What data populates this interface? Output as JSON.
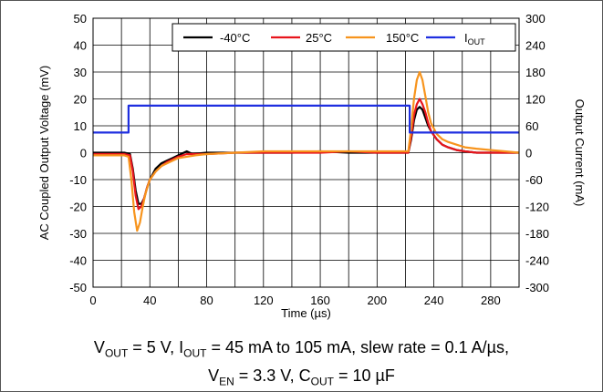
{
  "chart_data": {
    "type": "line",
    "xlabel": "Time (µs)",
    "ylabel_left": "AC Coupled Output Voltage (mV)",
    "ylabel_right": "Output Current (mA)",
    "xlim": [
      0,
      300
    ],
    "ylim_left": [
      -50,
      50
    ],
    "ylim_right": [
      -300,
      300
    ],
    "x_ticks": [
      0,
      40,
      80,
      120,
      160,
      200,
      240,
      280
    ],
    "y_left_ticks": [
      50,
      40,
      30,
      20,
      10,
      0,
      -10,
      -20,
      -30,
      -40,
      -50
    ],
    "y_right_ticks": [
      300,
      240,
      180,
      120,
      60,
      0,
      -60,
      -120,
      -180,
      -240,
      -300
    ],
    "grid": true,
    "legend_position": "top-right",
    "series": [
      {
        "name": "-40°C",
        "axis": "left",
        "color": "#000000",
        "points": [
          [
            0,
            0
          ],
          [
            22,
            0
          ],
          [
            26,
            -0.5
          ],
          [
            28,
            -6
          ],
          [
            30,
            -14
          ],
          [
            32,
            -19
          ],
          [
            34,
            -19
          ],
          [
            36,
            -17
          ],
          [
            38,
            -13
          ],
          [
            40,
            -10
          ],
          [
            44,
            -6
          ],
          [
            48,
            -4
          ],
          [
            52,
            -3
          ],
          [
            56,
            -2
          ],
          [
            60,
            -1
          ],
          [
            66,
            0.5
          ],
          [
            70,
            -0.5
          ],
          [
            80,
            0
          ],
          [
            100,
            0
          ],
          [
            120,
            0
          ],
          [
            140,
            0
          ],
          [
            160,
            0.5
          ],
          [
            180,
            0
          ],
          [
            200,
            0
          ],
          [
            222,
            0
          ],
          [
            224,
            5
          ],
          [
            226,
            12
          ],
          [
            228,
            16
          ],
          [
            230,
            17
          ],
          [
            232,
            16
          ],
          [
            234,
            13
          ],
          [
            236,
            10
          ],
          [
            238,
            8
          ],
          [
            242,
            5
          ],
          [
            246,
            3
          ],
          [
            250,
            2
          ],
          [
            256,
            1
          ],
          [
            262,
            0.5
          ],
          [
            270,
            0
          ],
          [
            280,
            0
          ],
          [
            290,
            0
          ],
          [
            300,
            0
          ]
        ]
      },
      {
        "name": "25°C",
        "axis": "left",
        "color": "#e8141c",
        "points": [
          [
            0,
            -0.5
          ],
          [
            22,
            -0.5
          ],
          [
            26,
            -1
          ],
          [
            28,
            -7
          ],
          [
            30,
            -16
          ],
          [
            32,
            -21
          ],
          [
            34,
            -20
          ],
          [
            36,
            -17
          ],
          [
            38,
            -13
          ],
          [
            40,
            -10
          ],
          [
            44,
            -7
          ],
          [
            48,
            -5
          ],
          [
            52,
            -3.5
          ],
          [
            56,
            -2.5
          ],
          [
            60,
            -1.5
          ],
          [
            66,
            -0.5
          ],
          [
            72,
            -0.5
          ],
          [
            80,
            -0.5
          ],
          [
            100,
            0
          ],
          [
            120,
            0
          ],
          [
            140,
            0
          ],
          [
            160,
            0
          ],
          [
            180,
            0.5
          ],
          [
            200,
            0
          ],
          [
            222,
            0
          ],
          [
            224,
            6
          ],
          [
            226,
            14
          ],
          [
            228,
            18
          ],
          [
            230,
            20
          ],
          [
            232,
            18
          ],
          [
            234,
            15
          ],
          [
            236,
            11
          ],
          [
            238,
            8
          ],
          [
            242,
            5
          ],
          [
            246,
            3
          ],
          [
            250,
            2
          ],
          [
            256,
            1
          ],
          [
            262,
            0.5
          ],
          [
            270,
            0
          ],
          [
            280,
            0
          ],
          [
            290,
            0
          ],
          [
            300,
            0
          ]
        ]
      },
      {
        "name": "150°C",
        "axis": "left",
        "color": "#f7941d",
        "points": [
          [
            0,
            -1
          ],
          [
            22,
            -1
          ],
          [
            25,
            -1.5
          ],
          [
            27,
            -10
          ],
          [
            29,
            -22
          ],
          [
            31,
            -29
          ],
          [
            33,
            -26
          ],
          [
            35,
            -20
          ],
          [
            37,
            -15
          ],
          [
            40,
            -10
          ],
          [
            44,
            -7
          ],
          [
            48,
            -5
          ],
          [
            52,
            -4
          ],
          [
            56,
            -3
          ],
          [
            60,
            -2
          ],
          [
            66,
            -1.5
          ],
          [
            72,
            -1
          ],
          [
            80,
            -0.5
          ],
          [
            100,
            0
          ],
          [
            120,
            0.5
          ],
          [
            140,
            0.5
          ],
          [
            160,
            0.5
          ],
          [
            180,
            0.5
          ],
          [
            200,
            0.5
          ],
          [
            222,
            0.5
          ],
          [
            224,
            9
          ],
          [
            226,
            20
          ],
          [
            228,
            27
          ],
          [
            230,
            30
          ],
          [
            232,
            27
          ],
          [
            234,
            21
          ],
          [
            236,
            15
          ],
          [
            238,
            11
          ],
          [
            242,
            7
          ],
          [
            246,
            5
          ],
          [
            250,
            4
          ],
          [
            256,
            3
          ],
          [
            262,
            2
          ],
          [
            270,
            1.5
          ],
          [
            280,
            1
          ],
          [
            290,
            0.5
          ],
          [
            300,
            0
          ]
        ]
      },
      {
        "name": "IOUT",
        "axis": "right",
        "color": "#1f2fe0",
        "points": [
          [
            0,
            45
          ],
          [
            25,
            45
          ],
          [
            25,
            105
          ],
          [
            223,
            105
          ],
          [
            223,
            45
          ],
          [
            300,
            45
          ]
        ]
      }
    ]
  },
  "caption": {
    "line1": {
      "v": "V",
      "v_sub": "OUT",
      "v_rest": " = 5 V, I",
      "i_sub": "OUT",
      "i_rest": " = 45 mA to 105 mA, slew rate = 0.1 A/µs,"
    },
    "line2": {
      "v": "V",
      "v_sub": "EN",
      "v_rest": " = 3.3 V, C",
      "c_sub": "OUT",
      "c_rest": " = 10 µF"
    }
  }
}
